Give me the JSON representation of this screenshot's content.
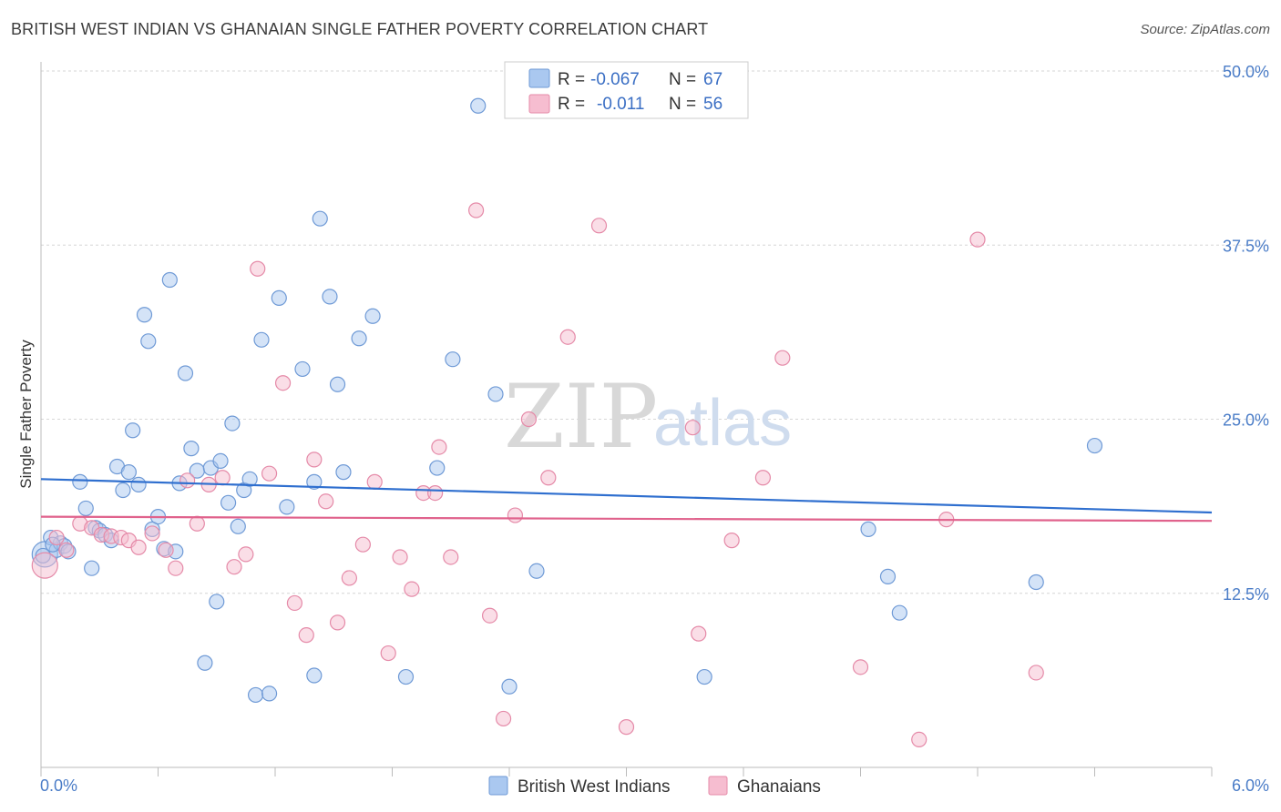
{
  "title": "BRITISH WEST INDIAN VS GHANAIAN SINGLE FATHER POVERTY CORRELATION CHART",
  "source": "Source: ZipAtlas.com",
  "watermark": {
    "zip": "ZIP",
    "atlas": "atlas"
  },
  "colors": {
    "blue_fill": "#aac8f0",
    "blue_stroke": "#6f9ad6",
    "blue_line": "#2f6fcf",
    "pink_fill": "#f6bdd0",
    "pink_stroke": "#e58aa8",
    "pink_line": "#e0628c",
    "grid": "#d6d6d6",
    "axis_text": "#4a7cc7"
  },
  "legend": {
    "rows": [
      {
        "r_label": "R = ",
        "r_value": "-0.067",
        "n_label": "N = ",
        "n_value": "67"
      },
      {
        "r_label": "R = ",
        "r_value": "-0.011",
        "n_label": "N = ",
        "n_value": "56"
      }
    ]
  },
  "chart_data": {
    "type": "scatter",
    "title": "BRITISH WEST INDIAN VS GHANAIAN SINGLE FATHER POVERTY CORRELATION CHART",
    "xlabel": "",
    "ylabel": "Single Father Poverty",
    "xlim": [
      0,
      6
    ],
    "ylim": [
      0,
      50
    ],
    "x_tick_labels": [
      "0.0%",
      "6.0%"
    ],
    "y_ticks": [
      12.5,
      25.0,
      37.5,
      50.0
    ],
    "y_tick_labels": [
      "12.5%",
      "25.0%",
      "37.5%",
      "50.0%"
    ],
    "grid": true,
    "legend_position": "top-center",
    "series": [
      {
        "name": "British West Indians",
        "color": "#aac8f0",
        "trend": {
          "x": [
            0,
            6
          ],
          "y": [
            20.7,
            18.3
          ]
        },
        "points": [
          [
            0.02,
            15.3
          ],
          [
            0.05,
            16.5
          ],
          [
            0.08,
            15.6
          ],
          [
            0.1,
            16.1
          ],
          [
            0.12,
            15.9
          ],
          [
            0.14,
            15.5
          ],
          [
            0.2,
            20.5
          ],
          [
            0.23,
            18.6
          ],
          [
            0.26,
            14.3
          ],
          [
            0.28,
            17.2
          ],
          [
            0.3,
            17.0
          ],
          [
            0.33,
            16.7
          ],
          [
            0.36,
            16.3
          ],
          [
            0.39,
            21.6
          ],
          [
            0.42,
            19.9
          ],
          [
            0.45,
            21.2
          ],
          [
            0.47,
            24.2
          ],
          [
            0.5,
            20.3
          ],
          [
            0.53,
            32.5
          ],
          [
            0.55,
            30.6
          ],
          [
            0.57,
            17.1
          ],
          [
            0.6,
            18.0
          ],
          [
            0.63,
            15.7
          ],
          [
            0.66,
            35.0
          ],
          [
            0.69,
            15.5
          ],
          [
            0.71,
            20.4
          ],
          [
            0.74,
            28.3
          ],
          [
            0.77,
            22.9
          ],
          [
            0.8,
            21.3
          ],
          [
            0.84,
            7.5
          ],
          [
            0.87,
            21.5
          ],
          [
            0.9,
            11.9
          ],
          [
            0.92,
            22.0
          ],
          [
            0.96,
            19.0
          ],
          [
            0.98,
            24.7
          ],
          [
            1.01,
            17.3
          ],
          [
            1.04,
            19.9
          ],
          [
            1.07,
            20.7
          ],
          [
            1.1,
            5.2
          ],
          [
            1.13,
            30.7
          ],
          [
            1.17,
            5.3
          ],
          [
            1.22,
            33.7
          ],
          [
            1.26,
            18.7
          ],
          [
            1.34,
            28.6
          ],
          [
            1.4,
            20.5
          ],
          [
            1.4,
            6.6
          ],
          [
            1.43,
            39.4
          ],
          [
            1.48,
            33.8
          ],
          [
            1.52,
            27.5
          ],
          [
            1.55,
            21.2
          ],
          [
            1.63,
            30.8
          ],
          [
            1.7,
            32.4
          ],
          [
            1.87,
            6.5
          ],
          [
            2.03,
            21.5
          ],
          [
            2.11,
            29.3
          ],
          [
            2.24,
            47.5
          ],
          [
            2.33,
            26.8
          ],
          [
            2.4,
            5.8
          ],
          [
            2.54,
            14.1
          ],
          [
            3.4,
            6.5
          ],
          [
            4.24,
            17.1
          ],
          [
            4.34,
            13.7
          ],
          [
            4.4,
            11.1
          ],
          [
            5.1,
            13.3
          ],
          [
            5.4,
            23.1
          ],
          [
            0.01,
            15.2
          ],
          [
            0.06,
            16.0
          ]
        ]
      },
      {
        "name": "Ghanaians",
        "color": "#f6bdd0",
        "trend": {
          "x": [
            0,
            6
          ],
          "y": [
            18.0,
            17.7
          ]
        },
        "points": [
          [
            0.02,
            14.5
          ],
          [
            0.08,
            16.5
          ],
          [
            0.13,
            15.6
          ],
          [
            0.2,
            17.5
          ],
          [
            0.26,
            17.2
          ],
          [
            0.31,
            16.7
          ],
          [
            0.36,
            16.6
          ],
          [
            0.41,
            16.5
          ],
          [
            0.45,
            16.3
          ],
          [
            0.5,
            15.8
          ],
          [
            0.57,
            16.8
          ],
          [
            0.64,
            15.6
          ],
          [
            0.69,
            14.3
          ],
          [
            0.75,
            20.6
          ],
          [
            0.8,
            17.5
          ],
          [
            0.86,
            20.3
          ],
          [
            0.93,
            20.8
          ],
          [
            0.99,
            14.4
          ],
          [
            1.05,
            15.3
          ],
          [
            1.11,
            35.8
          ],
          [
            1.17,
            21.1
          ],
          [
            1.24,
            27.6
          ],
          [
            1.3,
            11.8
          ],
          [
            1.36,
            9.5
          ],
          [
            1.4,
            22.1
          ],
          [
            1.46,
            19.1
          ],
          [
            1.52,
            10.4
          ],
          [
            1.58,
            13.6
          ],
          [
            1.65,
            16.0
          ],
          [
            1.71,
            20.5
          ],
          [
            1.78,
            8.2
          ],
          [
            1.84,
            15.1
          ],
          [
            1.9,
            12.8
          ],
          [
            1.96,
            19.7
          ],
          [
            2.02,
            19.7
          ],
          [
            2.04,
            23.0
          ],
          [
            2.1,
            15.1
          ],
          [
            2.23,
            40.0
          ],
          [
            2.3,
            10.9
          ],
          [
            2.37,
            3.5
          ],
          [
            2.43,
            18.1
          ],
          [
            2.5,
            25.0
          ],
          [
            2.6,
            20.8
          ],
          [
            2.7,
            30.9
          ],
          [
            2.86,
            38.9
          ],
          [
            3.0,
            2.9
          ],
          [
            3.34,
            24.4
          ],
          [
            3.37,
            9.6
          ],
          [
            3.54,
            16.3
          ],
          [
            3.7,
            20.8
          ],
          [
            3.8,
            29.4
          ],
          [
            4.2,
            7.2
          ],
          [
            4.5,
            2.0
          ],
          [
            4.64,
            17.8
          ],
          [
            4.8,
            37.9
          ],
          [
            5.1,
            6.8
          ]
        ]
      }
    ]
  },
  "bottom_legend": [
    "British West Indians",
    "Ghanaians"
  ]
}
